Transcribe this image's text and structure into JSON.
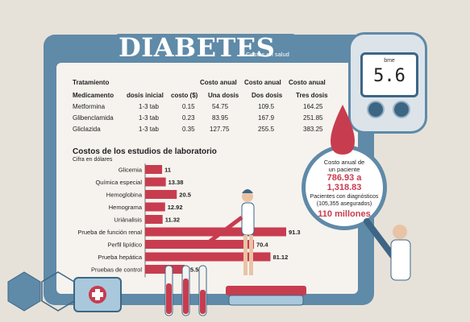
{
  "header": {
    "title": "DIABETES",
    "subtitle": "Costos en salud"
  },
  "table": {
    "section_header": "Tratamiento",
    "group_header": "Costo anual",
    "columns": [
      "Medicamento",
      "dosis inicial",
      "costo ($)",
      "Una dosis",
      "Dos dosis",
      "Tres dosis"
    ],
    "rows": [
      [
        "Metformina",
        "1-3 tab",
        "0.15",
        "54.75",
        "109.5",
        "164.25"
      ],
      [
        "Glibenclamida",
        "1-3 tab",
        "0.23",
        "83.95",
        "167.9",
        "251.85"
      ],
      [
        "Gliclazida",
        "1-3 tab",
        "0.35",
        "127.75",
        "255.5",
        "383.25"
      ]
    ]
  },
  "chart_data": {
    "type": "bar",
    "orientation": "horizontal",
    "title": "Costos de los estudios de laboratorio",
    "subtitle": "Cifra en dólares",
    "categories": [
      "Glicemia",
      "Química especial",
      "Hemoglobina",
      "Hemograma",
      "Uriánalisis",
      "Prueba de función renal",
      "Perfil lipídico",
      "Prueba hepática",
      "Pruebas de control"
    ],
    "values": [
      11,
      13.38,
      20.5,
      12.92,
      11.32,
      91.3,
      70.4,
      81.12,
      25.5
    ],
    "value_labels": [
      "11",
      "13.38",
      "20.5",
      "12.92",
      "11.32",
      "91.3",
      "70.4",
      "81.12",
      "25.5"
    ],
    "bar_color": "#c83c4f"
  },
  "callout": {
    "line1": "Costo anual de",
    "line2": "un paciente",
    "amount1": "786.93 a",
    "amount2": "1,318.83",
    "line3": "Pacientes con diagnósticos",
    "line4": "(105,355  asegurados)",
    "amount3": "110 millones"
  },
  "glucometer": {
    "unit": "bme",
    "reading": "5.6"
  },
  "colors": {
    "accent": "#c83c4f",
    "frame": "#5f8aa8",
    "panel": "#f6f3ee"
  }
}
